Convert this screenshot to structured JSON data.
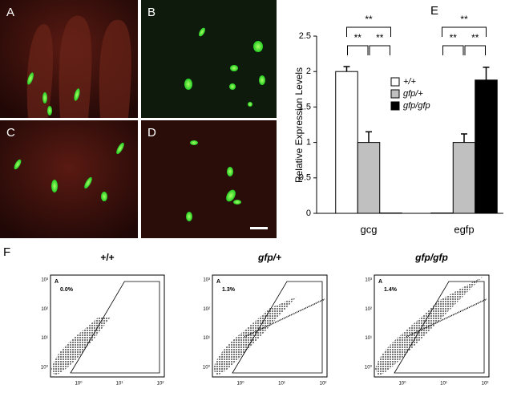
{
  "panel_labels": [
    "A",
    "B",
    "C",
    "D",
    "E",
    "F"
  ],
  "chart_data": {
    "type": "bar",
    "ylabel": "Relative Expression Levels",
    "categories": [
      "gcg",
      "egfp"
    ],
    "series": [
      {
        "name": "+/+",
        "color": "#ffffff",
        "values": [
          2.0,
          0.005
        ],
        "errors": [
          0.07,
          null
        ]
      },
      {
        "name": "gfp/+",
        "color": "#c0c0c0",
        "values": [
          1.0,
          1.0
        ],
        "errors": [
          0.15,
          0.12
        ]
      },
      {
        "name": "gfp/gfp",
        "color": "#000000",
        "values": [
          0.005,
          1.88
        ],
        "errors": [
          null,
          0.18
        ]
      }
    ],
    "ylim": [
      0,
      2.5
    ],
    "yticks": [
      0,
      0.5,
      1,
      1.5,
      2,
      2.5
    ],
    "significance": [
      "**",
      "**",
      "**",
      "**",
      "**",
      "**"
    ]
  },
  "flow_plots": [
    {
      "title": "+/+",
      "gate": "A",
      "percent": "0.0%"
    },
    {
      "title": "gfp/+",
      "gate": "A",
      "percent": "1.3%"
    },
    {
      "title": "gfp/gfp",
      "gate": "A",
      "percent": "1.4%"
    }
  ],
  "flow_yticks": [
    "10⁰",
    "10¹",
    "10²",
    "10³"
  ],
  "flow_xticks": [
    "10⁰",
    "10¹",
    "10²"
  ]
}
